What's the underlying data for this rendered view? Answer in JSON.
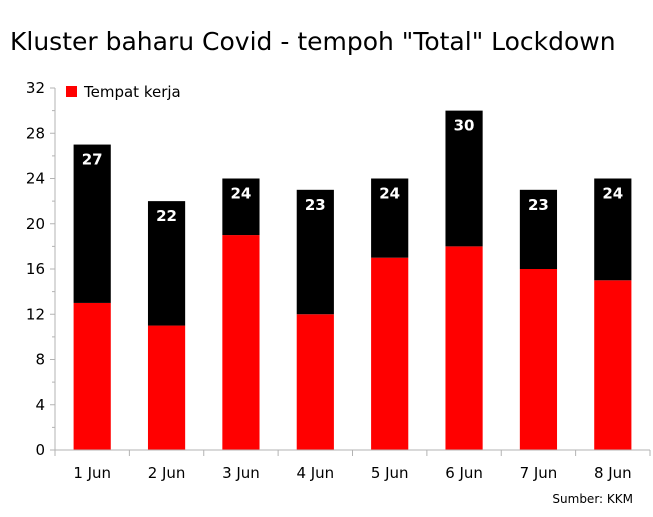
{
  "chart_data": {
    "type": "bar",
    "stacked": true,
    "title": "Kluster baharu Covid - tempoh \"Total\" Lockdown",
    "source": "Sumber: KKM",
    "categories": [
      "1 Jun",
      "2 Jun",
      "3 Jun",
      "4 Jun",
      "5 Jun",
      "6 Jun",
      "7 Jun",
      "8 Jun"
    ],
    "series": [
      {
        "name": "Tempat kerja",
        "color": "#ff0000",
        "values": [
          13,
          11,
          19,
          12,
          17,
          18,
          16,
          15
        ]
      },
      {
        "color": "#000000",
        "values": [
          14,
          11,
          5,
          11,
          7,
          12,
          7,
          9
        ]
      }
    ],
    "totals": [
      27,
      22,
      24,
      23,
      24,
      30,
      23,
      24
    ],
    "ylim": [
      0,
      32
    ],
    "yticks": [
      0,
      4,
      8,
      12,
      16,
      20,
      24,
      28,
      32
    ],
    "grid": false,
    "legend_position": "top-left"
  }
}
